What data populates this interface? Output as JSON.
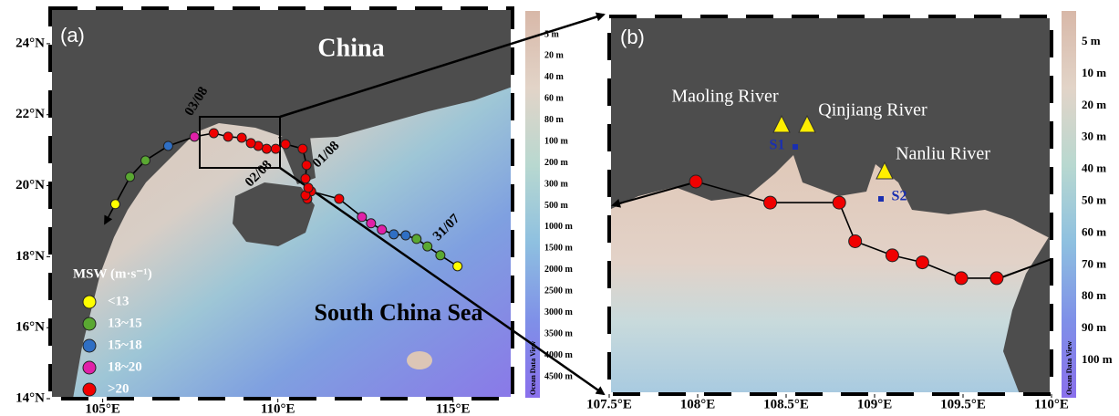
{
  "panels": [
    {
      "label": "(a)",
      "xlim": [
        103.5,
        116.7
      ],
      "ylim": [
        14,
        25
      ],
      "xticks": [
        {
          "value": 105,
          "label": "105°E"
        },
        {
          "value": 110,
          "label": "110°E"
        },
        {
          "value": 115,
          "label": "115°E"
        }
      ],
      "yticks": [
        {
          "value": 24,
          "label": "24°N"
        },
        {
          "value": 22,
          "label": "22°N"
        },
        {
          "value": 20,
          "label": "20°N"
        },
        {
          "value": 18,
          "label": "18°N"
        },
        {
          "value": 16,
          "label": "16°N"
        },
        {
          "value": 14,
          "label": "14°N"
        }
      ],
      "places": [
        "China",
        "South China Sea"
      ],
      "track_dates": [
        "03/08",
        "02/08",
        "01/08",
        "31/07"
      ],
      "track": {
        "lon": [
          115.13,
          114.64,
          114.27,
          113.96,
          113.65,
          113.31,
          112.97,
          112.66,
          112.4,
          111.75,
          110.95,
          110.84,
          110.79,
          110.87,
          110.79,
          110.82,
          110.71,
          110.22,
          109.94,
          109.68,
          109.44,
          109.23,
          108.97,
          108.58,
          108.17,
          107.62,
          106.87,
          106.22,
          105.78,
          105.36
        ],
        "lat": [
          17.73,
          18.04,
          18.29,
          18.5,
          18.6,
          18.63,
          18.76,
          18.94,
          19.12,
          19.63,
          19.84,
          19.63,
          19.73,
          19.94,
          20.2,
          20.58,
          21.04,
          21.17,
          21.04,
          21.04,
          21.12,
          21.2,
          21.35,
          21.38,
          21.48,
          21.38,
          21.12,
          20.71,
          20.25,
          19.48
        ],
        "class": [
          0,
          1,
          1,
          1,
          2,
          2,
          3,
          3,
          3,
          4,
          4,
          4,
          4,
          4,
          4,
          4,
          4,
          4,
          4,
          4,
          4,
          4,
          4,
          4,
          4,
          3,
          2,
          1,
          1,
          0
        ]
      },
      "legend": {
        "title": "MSW (m·s⁻¹)",
        "items": [
          {
            "label": "<13",
            "color": "#ffff00"
          },
          {
            "label": "13~15",
            "color": "#5aa832"
          },
          {
            "label": "15~18",
            "color": "#2f6fc4"
          },
          {
            "label": "18~20",
            "color": "#e020a8"
          },
          {
            "label": ">20",
            "color": "#f00000"
          }
        ]
      },
      "colorbar": {
        "labels": [
          "5 m",
          "20 m",
          "40 m",
          "60 m",
          "80 m",
          "100 m",
          "200 m",
          "300 m",
          "500 m",
          "1000 m",
          "1500 m",
          "2000 m",
          "2500 m",
          "3000 m",
          "3500 m",
          "4000 m",
          "4500 m"
        ],
        "credit": "Ocean Data View"
      }
    },
    {
      "label": "(b)",
      "xlim": [
        107.5,
        110
      ],
      "ylim": [
        20.45,
        22.6
      ],
      "xticks": [
        {
          "value": 107.5,
          "label": "107.5°E"
        },
        {
          "value": 108,
          "label": "108°E"
        },
        {
          "value": 108.5,
          "label": "108.5°E"
        },
        {
          "value": 109,
          "label": "109°E"
        },
        {
          "value": 109.5,
          "label": "109.5°E"
        },
        {
          "value": 110,
          "label": "110°E"
        }
      ],
      "rivers": [
        "Maoling River",
        "Qinjiang River",
        "Nanliu River"
      ],
      "stations": [
        "S1",
        "S2"
      ],
      "track": {
        "lon": [
          107.99,
          108.41,
          108.8,
          108.89,
          109.1,
          109.27,
          109.49,
          109.69
        ],
        "lat": [
          21.66,
          21.54,
          21.54,
          21.32,
          21.24,
          21.2,
          21.11,
          21.11
        ],
        "color": "#f00000"
      },
      "colorbar": {
        "labels": [
          "5 m",
          "10 m",
          "20 m",
          "30 m",
          "40 m",
          "50 m",
          "60 m",
          "70 m",
          "80 m",
          "90 m",
          "100 m"
        ],
        "credit": "Ocean Data View"
      }
    }
  ]
}
